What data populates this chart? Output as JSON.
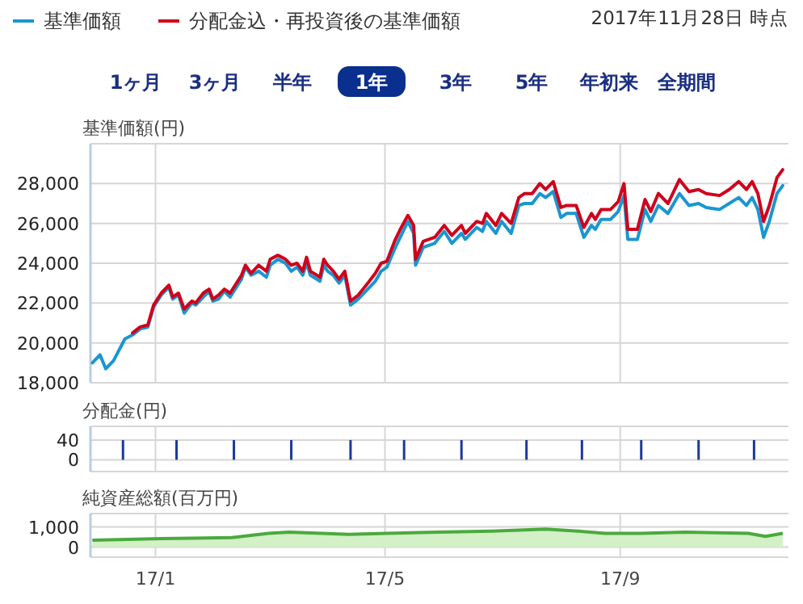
{
  "chart_data": [
    {
      "type": "line",
      "subtitle": "2017年11月28日 時点",
      "annotations": [
        "1ヶ月",
        "3ヶ月",
        "半年",
        "1年",
        "3年",
        "5年",
        "年初来",
        "全期間"
      ],
      "ylabel": "基準価額(円)",
      "legend": "top left",
      "grid": true,
      "tick_labels": "y",
      "xlim": [
        "2016-11-28",
        "2017-11-28"
      ],
      "xticks": [
        {
          "value": "2017-01-01",
          "label": null
        },
        {
          "value": "2017-05-01",
          "label": null
        },
        {
          "value": "2017-09-01",
          "label": null
        }
      ],
      "ylim": [
        18000,
        30000
      ],
      "yticks": [
        {
          "value": 18000,
          "label": "18,000"
        },
        {
          "value": 20000,
          "label": "20,000"
        },
        {
          "value": 22000,
          "label": "22,000"
        },
        {
          "value": 24000,
          "label": "24,000"
        },
        {
          "value": 26000,
          "label": "26,000"
        },
        {
          "value": 28000,
          "label": "28,000"
        }
      ],
      "x": [
        "2016-11-29",
        "2016-12-03",
        "2016-12-06",
        "2016-12-10",
        "2016-12-16",
        "2016-12-20",
        "2016-12-24",
        "2016-12-28",
        "2016-12-31",
        "2017-01-04",
        "2017-01-08",
        "2017-01-10",
        "2017-01-13",
        "2017-01-16",
        "2017-01-20",
        "2017-01-22",
        "2017-01-26",
        "2017-01-29",
        "2017-01-31",
        "2017-02-03",
        "2017-02-06",
        "2017-02-09",
        "2017-02-15",
        "2017-02-17",
        "2017-02-20",
        "2017-02-24",
        "2017-02-28",
        "2017-03-02",
        "2017-03-06",
        "2017-03-10",
        "2017-03-13",
        "2017-03-16",
        "2017-03-19",
        "2017-03-21",
        "2017-03-23",
        "2017-03-28",
        "2017-03-30",
        "2017-04-01",
        "2017-04-04",
        "2017-04-07",
        "2017-04-10",
        "2017-04-13",
        "2017-04-17",
        "2017-04-22",
        "2017-04-26",
        "2017-04-29",
        "2017-05-02",
        "2017-05-06",
        "2017-05-09",
        "2017-05-13",
        "2017-05-16",
        "2017-05-17",
        "2017-05-21",
        "2017-05-27",
        "2017-06-01",
        "2017-06-05",
        "2017-06-10",
        "2017-06-12",
        "2017-06-18",
        "2017-06-21",
        "2017-06-23",
        "2017-06-28",
        "2017-07-01",
        "2017-07-06",
        "2017-07-10",
        "2017-07-13",
        "2017-07-17",
        "2017-07-21",
        "2017-07-24",
        "2017-07-28",
        "2017-08-01",
        "2017-08-04",
        "2017-08-09",
        "2017-08-13",
        "2017-08-17",
        "2017-08-19",
        "2017-08-22",
        "2017-08-27",
        "2017-08-31",
        "2017-09-03",
        "2017-09-05",
        "2017-09-10",
        "2017-09-14",
        "2017-09-17",
        "2017-09-21",
        "2017-09-26",
        "2017-10-02",
        "2017-10-07",
        "2017-10-12",
        "2017-10-16",
        "2017-10-23",
        "2017-10-28",
        "2017-11-02",
        "2017-11-06",
        "2017-11-09",
        "2017-11-12",
        "2017-11-15",
        "2017-11-18",
        "2017-11-22",
        "2017-11-25"
      ],
      "series": [
        {
          "name": "基準価額",
          "color": "#1a96d0",
          "values": [
            19000,
            19400,
            18700,
            19100,
            20200,
            20400,
            20700,
            20800,
            21800,
            22400,
            22800,
            22200,
            22400,
            21500,
            22000,
            21900,
            22300,
            22600,
            22100,
            22200,
            22600,
            22300,
            23200,
            23800,
            23400,
            23600,
            23300,
            23900,
            24200,
            24000,
            23600,
            23800,
            23400,
            24000,
            23400,
            23100,
            23900,
            23600,
            23400,
            23000,
            23400,
            21900,
            22200,
            22700,
            23100,
            23600,
            23800,
            24700,
            25300,
            26100,
            25500,
            23900,
            24800,
            25000,
            25600,
            25000,
            25500,
            25200,
            25800,
            25600,
            26100,
            25500,
            26100,
            25500,
            26900,
            27000,
            27000,
            27500,
            27300,
            27600,
            26300,
            26500,
            26500,
            25300,
            25900,
            25700,
            26200,
            26200,
            26600,
            27400,
            25200,
            25200,
            26700,
            26100,
            26900,
            26500,
            27500,
            26900,
            27000,
            26800,
            26700,
            27000,
            27300,
            26900,
            27300,
            26700,
            25300,
            26100,
            27500,
            27900
          ]
        },
        {
          "name": "分配金込・再投資後の基準価額",
          "color": "#d0021b",
          "values": [
            null,
            null,
            null,
            null,
            null,
            20500,
            20800,
            20900,
            21900,
            22500,
            22900,
            22300,
            22500,
            21700,
            22100,
            22000,
            22500,
            22700,
            22200,
            22400,
            22700,
            22500,
            23400,
            23900,
            23500,
            23900,
            23600,
            24200,
            24400,
            24200,
            23900,
            24000,
            23600,
            24300,
            23600,
            23300,
            24200,
            23900,
            23600,
            23200,
            23600,
            22100,
            22400,
            23000,
            23500,
            24000,
            24100,
            25100,
            25700,
            26400,
            25900,
            24200,
            25100,
            25300,
            25900,
            25400,
            25900,
            25500,
            26100,
            26000,
            26500,
            25900,
            26500,
            26000,
            27300,
            27500,
            27500,
            28000,
            27700,
            28100,
            26800,
            26900,
            26900,
            25800,
            26500,
            26200,
            26700,
            26700,
            27100,
            28000,
            25700,
            25700,
            27200,
            26600,
            27500,
            27000,
            28200,
            27600,
            27700,
            27500,
            27400,
            27700,
            28100,
            27700,
            28100,
            27500,
            26100,
            26900,
            28300,
            28700
          ]
        }
      ]
    },
    {
      "type": "bar",
      "ylabel": "分配金(円)",
      "grid": true,
      "tick_labels": "y",
      "xlim": [
        "2016-11-28",
        "2017-11-28"
      ],
      "xticks": [
        {
          "value": "2017-01-01",
          "label": null
        },
        {
          "value": "2017-05-01",
          "label": null
        },
        {
          "value": "2017-09-01",
          "label": null
        }
      ],
      "ylim": [
        -24,
        68
      ],
      "yticks": [
        {
          "value": 0,
          "label": "0"
        },
        {
          "value": 40,
          "label": "40"
        }
      ],
      "color": "#1a3a9c",
      "x": [
        "2016-12-15",
        "2017-01-12",
        "2017-02-11",
        "2017-03-13",
        "2017-04-13",
        "2017-05-11",
        "2017-06-10",
        "2017-07-14",
        "2017-08-12",
        "2017-09-12",
        "2017-10-12",
        "2017-11-10"
      ],
      "values": [
        40,
        40,
        40,
        40,
        40,
        40,
        40,
        40,
        40,
        40,
        40,
        40
      ]
    },
    {
      "type": "area",
      "ylabel": "純資産総額(百万円)",
      "grid": true,
      "xlim": [
        "2016-11-28",
        "2017-11-28"
      ],
      "xticks": [
        {
          "value": "2017-01-01",
          "label": "17/1"
        },
        {
          "value": "2017-05-01",
          "label": "17/5"
        },
        {
          "value": "2017-09-01",
          "label": "17/9"
        }
      ],
      "ylim": [
        -500,
        1660
      ],
      "yticks": [
        0,
        {
          "value": 1000,
          "label": "1,000"
        }
      ],
      "color": "#4aaa3c",
      "x": [
        "2016-11-29",
        "2017-01-04",
        "2017-02-10",
        "2017-03-01",
        "2017-03-12",
        "2017-04-12",
        "2017-05-02",
        "2017-05-29",
        "2017-06-26",
        "2017-07-24",
        "2017-08-10",
        "2017-08-24",
        "2017-09-12",
        "2017-10-05",
        "2017-11-07",
        "2017-11-16",
        "2017-11-25"
      ],
      "values": [
        340,
        420,
        470,
        680,
        740,
        630,
        680,
        740,
        790,
        890,
        790,
        680,
        680,
        740,
        680,
        530,
        680
      ]
    }
  ]
}
